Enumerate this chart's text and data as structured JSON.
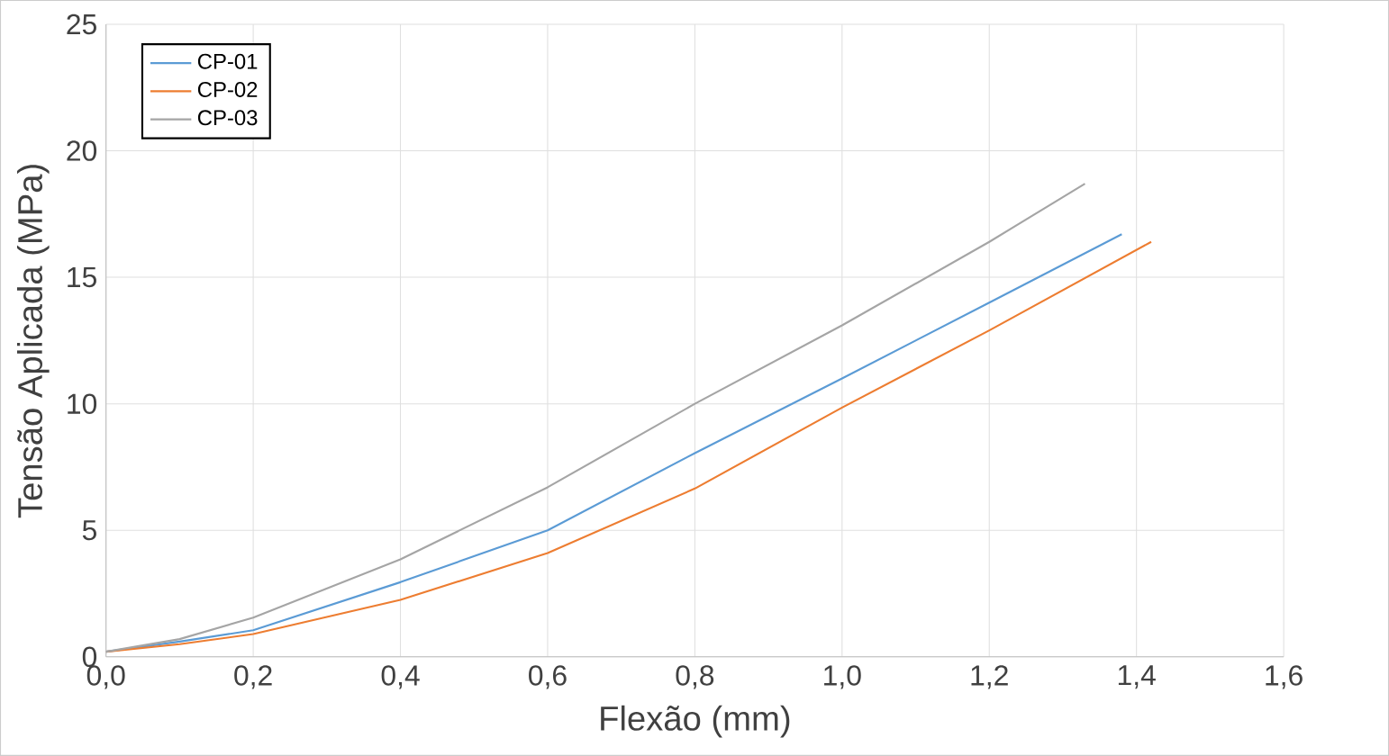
{
  "chart_data": {
    "type": "line",
    "xlabel": "Flexão (mm)",
    "ylabel": "Tensão Aplicada (MPa)",
    "xlim": [
      0,
      1.6
    ],
    "xticks": [
      {
        "value": 0,
        "label": "0,0"
      },
      {
        "value": 0.2,
        "label": "0,2"
      },
      {
        "value": 0.4,
        "label": "0,4"
      },
      {
        "value": 0.6,
        "label": "0,6"
      },
      {
        "value": 0.8,
        "label": "0,8"
      },
      {
        "value": 1.0,
        "label": "1,0"
      },
      {
        "value": 1.2,
        "label": "1,2"
      },
      {
        "value": 1.4,
        "label": "1,4"
      },
      {
        "value": 1.6,
        "label": "1,6"
      }
    ],
    "ylim": [
      0,
      25
    ],
    "yticks": [
      0,
      5,
      10,
      15,
      20,
      25
    ],
    "grid": true,
    "legend": "top left",
    "marker": "none",
    "line_style": "solid",
    "series": [
      {
        "name": "CP-01",
        "color": "#5b9bd5",
        "x": [
          0.0,
          0.1,
          0.2,
          0.4,
          0.6,
          0.8,
          1.0,
          1.2,
          1.38
        ],
        "values": [
          0.2,
          0.6,
          1.05,
          2.95,
          5.0,
          8.05,
          11.0,
          14.0,
          16.7
        ]
      },
      {
        "name": "CP-02",
        "color": "#ed7d31",
        "x": [
          0.0,
          0.1,
          0.2,
          0.4,
          0.6,
          0.8,
          1.0,
          1.2,
          1.42
        ],
        "values": [
          0.2,
          0.5,
          0.9,
          2.25,
          4.1,
          6.65,
          9.85,
          12.9,
          16.4
        ]
      },
      {
        "name": "CP-03",
        "color": "#a5a5a5",
        "x": [
          0.0,
          0.1,
          0.2,
          0.4,
          0.6,
          0.8,
          1.0,
          1.2,
          1.33
        ],
        "values": [
          0.2,
          0.7,
          1.55,
          3.85,
          6.7,
          10.0,
          13.1,
          16.4,
          18.7
        ]
      }
    ]
  }
}
